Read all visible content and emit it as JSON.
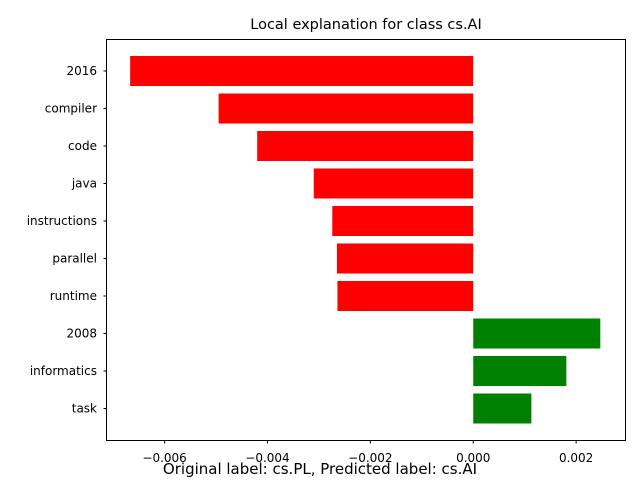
{
  "chart_data": {
    "type": "bar",
    "orientation": "horizontal",
    "title": "Local explanation for class cs.AI",
    "caption": "Original label: cs.PL, Predicted label: cs.AI",
    "categories": [
      "2016",
      "compiler",
      "code",
      "java",
      "instructions",
      "parallel",
      "runtime",
      "2008",
      "informatics",
      "task"
    ],
    "values": [
      -0.00667,
      -0.00495,
      -0.0042,
      -0.0031,
      -0.00274,
      -0.00265,
      -0.00264,
      0.00247,
      0.00181,
      0.00113
    ],
    "xlim": [
      -0.00712,
      0.00295
    ],
    "xticks": [
      -0.006,
      -0.004,
      -0.002,
      0.0,
      0.002
    ],
    "xtick_labels": [
      "−0.006",
      "−0.004",
      "−0.002",
      "0.000",
      "0.002"
    ],
    "grid": false,
    "colors": {
      "negative": "#ff0000",
      "positive": "#008000",
      "axis": "#000000"
    }
  }
}
